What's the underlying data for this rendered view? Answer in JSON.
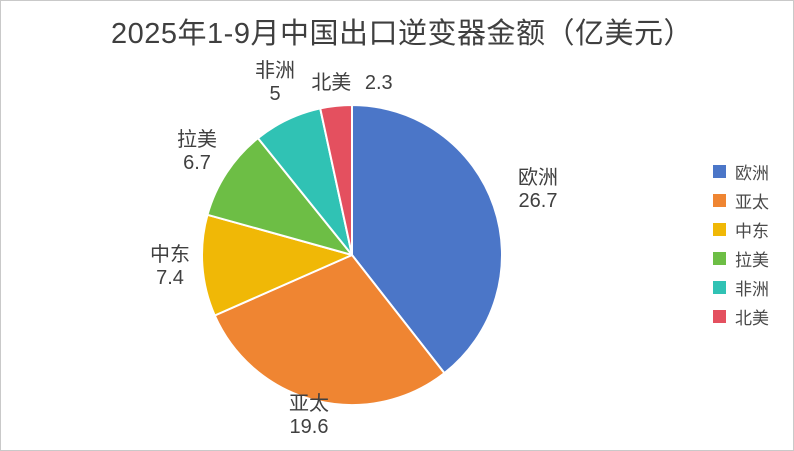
{
  "chart_data": {
    "type": "pie",
    "title": "2025年1-9月中国出口逆变器金额（亿美元）",
    "legend_position": "right",
    "start_angle_deg": 0,
    "direction": "clockwise",
    "total": 67.7,
    "points": [
      {
        "key": "europe",
        "label": "欧洲",
        "value": 26.7,
        "color": "#4B76C8"
      },
      {
        "key": "asia-pacific",
        "label": "亚太",
        "value": 19.6,
        "color": "#EF8532"
      },
      {
        "key": "middle-east",
        "label": "中东",
        "value": 7.4,
        "color": "#F0B806"
      },
      {
        "key": "latin-america",
        "label": "拉美",
        "value": 6.7,
        "color": "#6DBE45"
      },
      {
        "key": "africa",
        "label": "非洲",
        "value": 5,
        "color": "#30C2B4"
      },
      {
        "key": "north-america",
        "label": "北美",
        "value": 2.3,
        "color": "#E4505F"
      }
    ]
  },
  "colors": {
    "title_text": "#3F3F3F",
    "label_text": "#404040",
    "legend_text": "#4A4A4A",
    "border": "#C9C9C9",
    "background": "#FFFFFF",
    "slice_gap_stroke": "#FFFFFF"
  }
}
